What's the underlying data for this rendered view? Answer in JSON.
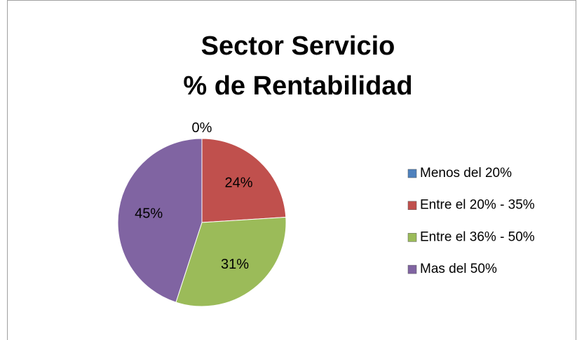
{
  "chart_data": {
    "type": "pie",
    "title": [
      "Sector Servicio",
      "% de Rentabilidad"
    ],
    "categories": [
      "Menos del 20%",
      "Entre el 20% - 35%",
      "Entre el 36% - 50%",
      "Mas del 50%"
    ],
    "values": [
      0,
      24,
      31,
      45
    ],
    "value_labels": [
      "0%",
      "24%",
      "31%",
      "45%"
    ],
    "colors": [
      "#4f81bd",
      "#c0504d",
      "#9bbb59",
      "#8064a2"
    ],
    "legend": "right"
  }
}
